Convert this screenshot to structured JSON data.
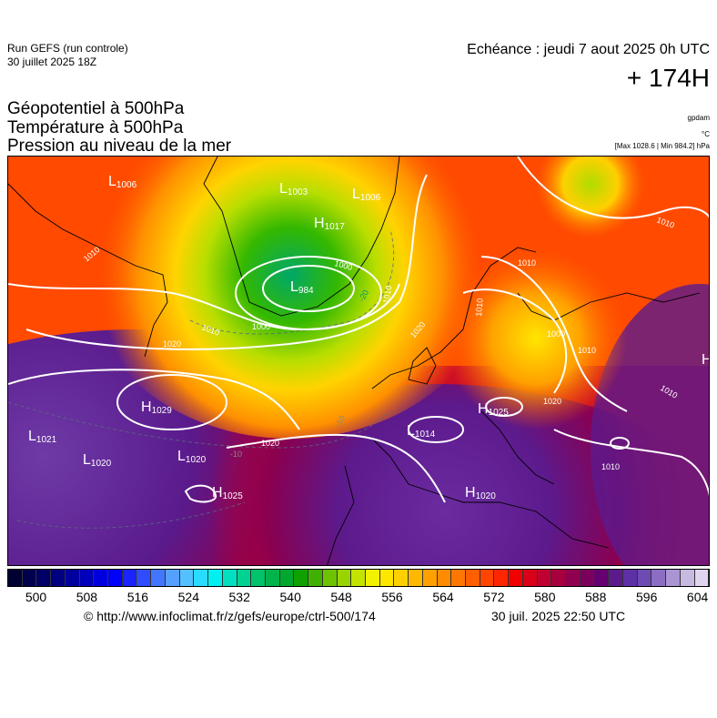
{
  "header": {
    "run_title": "Run GEFS (run controle)",
    "run_date": "30 juillet 2025 18Z",
    "echeance": "Echéance : jeudi 7 aout 2025 0h UTC",
    "lead_time": "+ 174H"
  },
  "variables": {
    "line1": "Géopotentiel à 500hPa",
    "line2": "Température à 500hPa",
    "line3": "Pression au niveau de la mer"
  },
  "units": {
    "geopotential": "gpdam",
    "temperature": "°C",
    "pressure": "[Max 1028.6 | Min 984.2] hPa"
  },
  "map": {
    "pressure_centers": [
      {
        "type": "L",
        "value": "1006"
      },
      {
        "type": "L",
        "value": "1003"
      },
      {
        "type": "L",
        "value": "1006"
      },
      {
        "type": "H",
        "value": "1017"
      },
      {
        "type": "L",
        "value": "984"
      },
      {
        "type": "H",
        "value": "1029"
      },
      {
        "type": "L",
        "value": "1021"
      },
      {
        "type": "L",
        "value": "1020"
      },
      {
        "type": "L",
        "value": "1020"
      },
      {
        "type": "H",
        "value": "1025"
      },
      {
        "type": "L",
        "value": "1014"
      },
      {
        "type": "H",
        "value": "1025"
      },
      {
        "type": "H",
        "value": "1020"
      },
      {
        "type": "H",
        "value": ""
      }
    ],
    "isobar_labels": [
      "1010",
      "1010",
      "1000",
      "1000",
      "1010",
      "1020",
      "1020",
      "1010",
      "1010",
      "1010",
      "1010",
      "1020",
      "1020",
      "1010",
      "1010",
      "1000"
    ],
    "temperature_labels": [
      "-20",
      "-10",
      "-10"
    ]
  },
  "colorbar": {
    "colors": [
      "#000033",
      "#00004d",
      "#000066",
      "#000080",
      "#00009e",
      "#0000bd",
      "#0000dc",
      "#0000fb",
      "#1a24ff",
      "#2f4dff",
      "#4276ff",
      "#55a0ff",
      "#54c0ff",
      "#29dcff",
      "#00f0f0",
      "#00e0c0",
      "#00d290",
      "#00c36a",
      "#00b44b",
      "#00a82f",
      "#10a000",
      "#40b000",
      "#6ec300",
      "#9ad400",
      "#c4e300",
      "#f2f200",
      "#ffe600",
      "#ffd000",
      "#ffb800",
      "#ffa000",
      "#ff8c00",
      "#ff7700",
      "#ff5f00",
      "#ff4500",
      "#ff2600",
      "#f20000",
      "#d90018",
      "#c00030",
      "#a8003f",
      "#900050",
      "#7a005c",
      "#660070",
      "#5c1a8c",
      "#5e30a6",
      "#6e4bb3",
      "#8c6dc4",
      "#ab94d4",
      "#c8b9e3",
      "#e0d4ee"
    ],
    "ticks": [
      "500",
      "508",
      "516",
      "524",
      "532",
      "540",
      "548",
      "556",
      "564",
      "572",
      "580",
      "588",
      "596",
      "604"
    ]
  },
  "footer": {
    "url": "© http://www.infoclimat.fr/z/gefs/europe/ctrl-500/174",
    "timestamp": "30 juil. 2025 22:50 UTC"
  }
}
